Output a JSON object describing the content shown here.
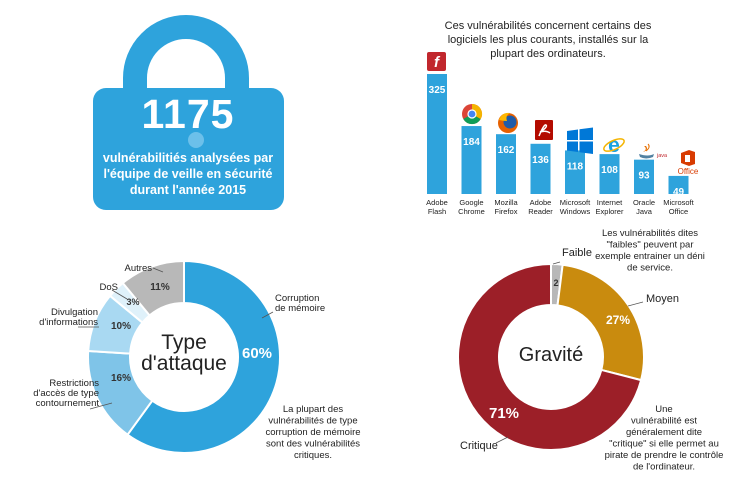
{
  "lock": {
    "number": "1175",
    "line1": "vulnérabilitiés analysées par",
    "line2": "l'équipe de veille en sécurité",
    "line3": "durant l'année 2015"
  },
  "software_intro": {
    "line1": "Ces vulnérabilités concernent certains des",
    "line2": "logiciels les plus courants, installés sur la",
    "line3": "plupart des ordinateurs."
  },
  "attack": {
    "center_line1": "Type",
    "center_line2": "d'attaque",
    "note_lines": [
      "La plupart des",
      "vulnérabilités de type",
      "corruption de mémoire",
      "sont des vulnérabilités",
      "critiques."
    ]
  },
  "gravity": {
    "center_label": "Gravité",
    "faible_note": [
      "Les vulnérabilités dites",
      "\"faibles\" peuvent par",
      "exemple entrainer un déni",
      "de service."
    ],
    "critique_note": [
      "Une",
      "vulnérabilité est",
      "généralement dite",
      "\"critique\" si elle permet au",
      "pirate de prendre le contrôle",
      "de l'ordinateur."
    ]
  },
  "icon_text": {
    "java": "java",
    "office": "Office"
  },
  "colors": {
    "blue": "#2ea3dc",
    "light_blue": "#7fc4e8",
    "pale_blue": "#a9d9f2",
    "grey": "#b8b8b8",
    "dark_red": "#9c1f28",
    "gold": "#c98b0e",
    "text": "#222222"
  },
  "chart_data": [
    {
      "type": "bar",
      "categories": [
        "Adobe Flash",
        "Google Chrome",
        "Mozilla Firefox",
        "Adobe Reader",
        "Microsoft Windows",
        "Internet Explorer",
        "Oracle Java",
        "Microsoft Office"
      ],
      "category_lines": [
        [
          "Adobe",
          "Flash"
        ],
        [
          "Google",
          "Chrome"
        ],
        [
          "Mozilla",
          "Firefox"
        ],
        [
          "Adobe",
          "Reader"
        ],
        [
          "Microsoft",
          "Windows"
        ],
        [
          "Internet",
          "Explorer"
        ],
        [
          "Oracle",
          "Java"
        ],
        [
          "Microsoft",
          "Office"
        ]
      ],
      "values": [
        325,
        184,
        162,
        136,
        118,
        108,
        93,
        49
      ],
      "icons": [
        "flash-icon",
        "chrome-icon",
        "firefox-icon",
        "reader-icon",
        "windows-icon",
        "ie-icon",
        "java-icon",
        "office-icon"
      ],
      "ylim": [
        0,
        325
      ]
    },
    {
      "type": "pie",
      "labels": [
        "Corruption de mémoire",
        "Restrictions d'accès de type contournement",
        "Divulgation d'informations",
        "DoS",
        "Autres"
      ],
      "label_lines": [
        [
          "Corruption",
          "de mémoire"
        ],
        [
          "Restrictions",
          "d'accès de type",
          "contournement"
        ],
        [
          "Divulgation",
          "d'informations"
        ],
        [
          "DoS"
        ],
        [
          "Autres"
        ]
      ],
      "values": [
        60,
        16,
        10,
        3,
        11
      ],
      "value_labels": [
        "60%",
        "16%",
        "10%",
        "3%",
        "11%"
      ],
      "colors": [
        "#2ea3dc",
        "#7fc4e8",
        "#a9d9f2",
        "#dff1fa",
        "#b8b8b8"
      ]
    },
    {
      "type": "pie",
      "labels": [
        "Faible",
        "Moyen",
        "Critique"
      ],
      "values": [
        2,
        27,
        71
      ],
      "value_labels": [
        "2",
        "27%",
        "71%"
      ],
      "colors": [
        "#b8b8b8",
        "#c98b0e",
        "#9c1f28"
      ]
    }
  ]
}
